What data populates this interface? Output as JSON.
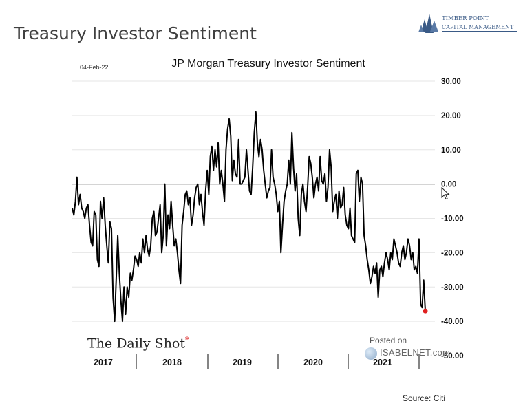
{
  "page_title": "Treasury Investor Sentiment",
  "brand": {
    "line1": "TIMBER POINT",
    "line2": "CAPITAL MANAGEMENT",
    "color": "#3a5a86"
  },
  "source": "Source: Citi",
  "watermark": {
    "posted_on": "Posted on",
    "site": "ISABELNET.com",
    "daily_shot": "The Daily Shot",
    "daily_shot_mark": "*"
  },
  "chart_data": {
    "type": "line",
    "title": "JP Morgan Treasury Investor Sentiment",
    "date_label": "04-Feb-22",
    "ylim": [
      -50,
      30
    ],
    "yticks": [
      30,
      20,
      10,
      0,
      -10,
      -20,
      -30,
      -40,
      -50
    ],
    "ytick_labels": [
      "30.00",
      "20.00",
      "10.00",
      "0.00",
      "-10.00",
      "-20.00",
      "-30.00",
      "-40.00",
      "-50.00"
    ],
    "x_labels": [
      "2017",
      "2018",
      "2019",
      "2020",
      "2021"
    ],
    "grid": "horizontal",
    "zero_line": true,
    "line_color": "#000000",
    "marker_color": "#e02020",
    "series": [
      {
        "values": [
          -7,
          -9,
          -5,
          2,
          -6,
          -3,
          -7,
          -8,
          -10,
          -7,
          -6,
          -12,
          -17,
          -18,
          -8,
          -9,
          -22,
          -24,
          -5,
          -10,
          -4,
          -12,
          -18,
          -23,
          -11,
          -13,
          -33,
          -40,
          -28,
          -15,
          -26,
          -34,
          -40,
          -30,
          -38,
          -30,
          -33,
          -26,
          -28,
          -25,
          -21,
          -22,
          -24,
          -20,
          -23,
          -16,
          -20,
          -15,
          -19,
          -21,
          -18,
          -10,
          -8,
          -15,
          -14,
          -10,
          -6,
          -20,
          -15,
          0,
          -18,
          -9,
          -13,
          -5,
          -12,
          -18,
          -16,
          -20,
          -25,
          -29,
          -12,
          -8,
          -3,
          -2,
          -6,
          -4,
          -12,
          -9,
          -4,
          -1,
          0,
          -6,
          -3,
          -8,
          -12,
          -2,
          4,
          -3,
          8,
          11,
          4,
          10,
          5,
          12,
          0,
          4,
          0,
          -5,
          10,
          16,
          19,
          14,
          1,
          7,
          3,
          2,
          13,
          0,
          0,
          1,
          2,
          10,
          4,
          -2,
          -3,
          5,
          15,
          21,
          12,
          8,
          13,
          10,
          4,
          0,
          -4,
          -2,
          -1,
          10,
          2,
          0,
          -3,
          -8,
          -5,
          -20,
          -12,
          -5,
          -2,
          0,
          7,
          0,
          15,
          5,
          -2,
          3,
          -10,
          -15,
          -3,
          0,
          -5,
          -8,
          -1,
          8,
          6,
          2,
          -4,
          0,
          2,
          -2,
          8,
          1,
          0,
          3,
          -5,
          -1,
          10,
          5,
          -8,
          -5,
          -3,
          -10,
          -2,
          -7,
          -6,
          -1,
          -9,
          -12,
          -13,
          -7,
          -15,
          -16,
          -17,
          3,
          4,
          -5,
          2,
          0,
          -15,
          -18,
          -22,
          -25,
          -29,
          -27,
          -24,
          -26,
          -23,
          -33,
          -25,
          -24,
          -27,
          -23,
          -20,
          -22,
          -25,
          -20,
          -22,
          -16,
          -18,
          -20,
          -23,
          -24,
          -20,
          -18,
          -22,
          -20,
          -16,
          -18,
          -22,
          -20,
          -25,
          -24,
          -26,
          -16,
          -35,
          -36,
          -28,
          -37
        ]
      }
    ]
  }
}
